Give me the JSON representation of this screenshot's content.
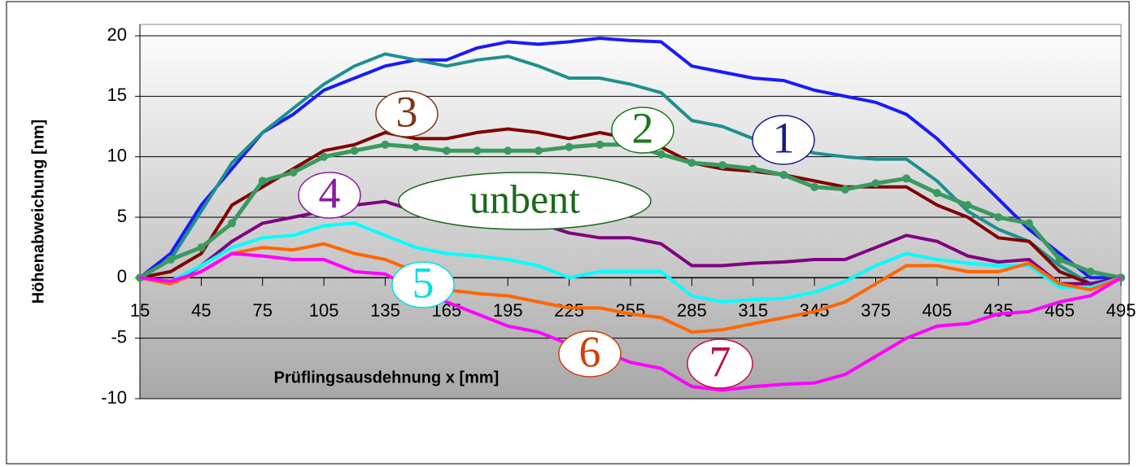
{
  "chart_data": {
    "type": "line",
    "x_label": "Prüflingsausdehnung x [mm]",
    "y_label": "Höhenabweichung [nm]",
    "x": [
      15,
      30,
      45,
      60,
      75,
      90,
      105,
      120,
      135,
      150,
      165,
      180,
      195,
      210,
      225,
      240,
      255,
      270,
      285,
      300,
      315,
      330,
      345,
      360,
      375,
      390,
      405,
      420,
      435,
      450,
      465,
      480,
      495
    ],
    "xlim": [
      15,
      495
    ],
    "xticks": [
      15,
      45,
      75,
      105,
      135,
      165,
      195,
      225,
      255,
      285,
      315,
      345,
      375,
      405,
      435,
      465,
      495
    ],
    "ylim": [
      -10,
      20
    ],
    "yticks": [
      -10,
      -5,
      0,
      5,
      10,
      15,
      20
    ],
    "grid": true,
    "series": [
      {
        "name": "1",
        "color": "#1a1aff",
        "label_color": "#1a1a8c",
        "values": [
          0,
          2,
          6,
          9,
          12,
          13.5,
          15.5,
          16.5,
          17.5,
          18,
          18,
          19,
          19.5,
          19.3,
          19.5,
          19.8,
          19.6,
          19.5,
          17.5,
          17,
          16.5,
          16.3,
          15.5,
          15,
          14.5,
          13.5,
          11.5,
          9,
          6.5,
          4,
          2,
          0,
          0
        ]
      },
      {
        "name": "2",
        "color": "#1f8f8f",
        "label_color": "#1a7a1a",
        "values": [
          0,
          1.5,
          5.5,
          9.5,
          12,
          14,
          16,
          17.5,
          18.5,
          18,
          17.5,
          18,
          18.3,
          17.5,
          16.5,
          16.5,
          16,
          15.3,
          13,
          12.5,
          11.5,
          11,
          10.3,
          10,
          9.8,
          9.8,
          8,
          5.5,
          4,
          3,
          1,
          -0.5,
          0
        ]
      },
      {
        "name": "3",
        "color": "#800000",
        "label_color": "#7a3a1a",
        "values": [
          0,
          0.5,
          2,
          6,
          7.5,
          9,
          10.5,
          11,
          12,
          11.5,
          11.5,
          12,
          12.3,
          12,
          11.5,
          12,
          11.5,
          10.8,
          9.5,
          9,
          8.8,
          8.5,
          8,
          7.5,
          7.5,
          7.5,
          6,
          5,
          3.3,
          3,
          0.5,
          -0.5,
          0
        ]
      },
      {
        "name": "unbent",
        "color": "#3a9a60",
        "label_color": "#1a6a1a",
        "marker": "circle",
        "values": [
          0,
          1.5,
          2.5,
          4.5,
          8,
          8.7,
          10,
          10.5,
          11,
          10.8,
          10.5,
          10.5,
          10.5,
          10.5,
          10.8,
          11,
          11,
          10.2,
          9.5,
          9.3,
          9,
          8.5,
          7.5,
          7.3,
          7.8,
          8.2,
          7,
          6,
          5,
          4.5,
          1.5,
          0.5,
          0
        ]
      },
      {
        "name": "4",
        "color": "#800080",
        "label_color": "#8a1aa0",
        "values": [
          0,
          -0.5,
          1,
          3,
          4.5,
          5,
          5.5,
          6,
          6.3,
          5.5,
          4.7,
          4.7,
          4.5,
          4.5,
          3.7,
          3.3,
          3.3,
          2.8,
          1,
          1,
          1.2,
          1.3,
          1.5,
          1.5,
          2.5,
          3.5,
          3,
          1.8,
          1.3,
          1.5,
          -0.5,
          -0.5,
          0
        ]
      },
      {
        "name": "5",
        "color": "#00ffff",
        "label_color": "#00e0e0",
        "values": [
          0,
          -0.3,
          1,
          2.5,
          3.3,
          3.5,
          4.3,
          4.5,
          3.5,
          2.5,
          2,
          1.8,
          1.5,
          1,
          0,
          0.5,
          0.5,
          0.5,
          -1.5,
          -2,
          -1.8,
          -1.7,
          -1.2,
          -0.3,
          1,
          2,
          1.5,
          1.2,
          1,
          1,
          -0.8,
          -0.8,
          0
        ]
      },
      {
        "name": "6",
        "color": "#ff6600",
        "label_color": "#d04010",
        "values": [
          0,
          -0.5,
          0.5,
          2,
          2.5,
          2.3,
          2.8,
          2,
          1.5,
          0.5,
          -1,
          -1.3,
          -1.5,
          -2,
          -2.5,
          -2.5,
          -3,
          -3.3,
          -4.5,
          -4.3,
          -3.8,
          -3.3,
          -2.8,
          -2,
          -0.5,
          1,
          1,
          0.5,
          0.5,
          1.2,
          -0.5,
          -1,
          0
        ]
      },
      {
        "name": "7",
        "color": "#ff00ff",
        "label_color": "#c0104a",
        "values": [
          0,
          -0.3,
          0.5,
          2,
          1.8,
          1.5,
          1.5,
          0.5,
          0.3,
          -1,
          -2,
          -3,
          -4,
          -4.5,
          -5.5,
          -6,
          -7,
          -7.5,
          -9,
          -9.3,
          -9,
          -8.8,
          -8.7,
          -8,
          -6.5,
          -5,
          -4,
          -3.8,
          -3,
          -2.8,
          -2,
          -1.5,
          0
        ]
      }
    ]
  }
}
